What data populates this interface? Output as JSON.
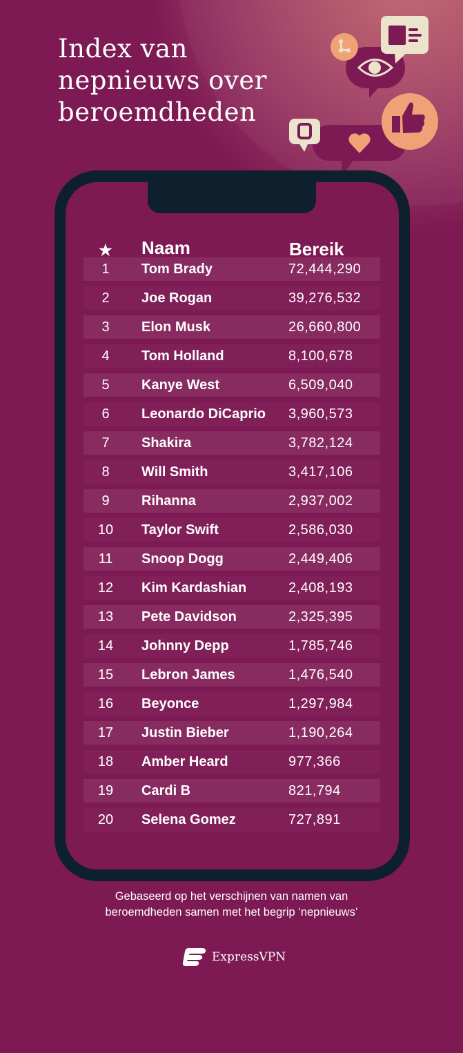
{
  "title": "Index van nepnieuws over beroemdheden",
  "title_lines": [
    "Index van",
    "nepnieuws over",
    "beroemdheden"
  ],
  "colors": {
    "background": "#7d1953",
    "phone": "#0e1f2e",
    "accent_peach": "#f0a276",
    "cream": "#ebe3cc"
  },
  "icons": [
    "share-icon",
    "newspaper-icon",
    "eye-icon",
    "thumbs-up-icon",
    "retweet-icon",
    "heart-icon",
    "star-icon"
  ],
  "chart_data": {
    "type": "table",
    "columns": [
      "★",
      "Naam",
      "Bereik"
    ],
    "rows": [
      {
        "rank": "1",
        "name": "Tom Brady",
        "reach": "72,444,290"
      },
      {
        "rank": "2",
        "name": "Joe Rogan",
        "reach": "39,276,532"
      },
      {
        "rank": "3",
        "name": "Elon Musk",
        "reach": "26,660,800"
      },
      {
        "rank": "4",
        "name": "Tom Holland",
        "reach": "8,100,678"
      },
      {
        "rank": "5",
        "name": "Kanye West",
        "reach": "6,509,040"
      },
      {
        "rank": "6",
        "name": "Leonardo DiCaprio",
        "reach": "3,960,573"
      },
      {
        "rank": "7",
        "name": "Shakira",
        "reach": "3,782,124"
      },
      {
        "rank": "8",
        "name": "Will Smith",
        "reach": "3,417,106"
      },
      {
        "rank": "9",
        "name": "Rihanna",
        "reach": "2,937,002"
      },
      {
        "rank": "10",
        "name": "Taylor Swift",
        "reach": "2,586,030"
      },
      {
        "rank": "11",
        "name": "Snoop Dogg",
        "reach": "2,449,406"
      },
      {
        "rank": "12",
        "name": "Kim Kardashian",
        "reach": "2,408,193"
      },
      {
        "rank": "13",
        "name": "Pete Davidson",
        "reach": "2,325,395"
      },
      {
        "rank": "14",
        "name": "Johnny Depp",
        "reach": "1,785,746"
      },
      {
        "rank": "15",
        "name": "Lebron James",
        "reach": "1,476,540"
      },
      {
        "rank": "16",
        "name": "Beyonce",
        "reach": "1,297,984"
      },
      {
        "rank": "17",
        "name": "Justin Bieber",
        "reach": "1,190,264"
      },
      {
        "rank": "18",
        "name": "Amber Heard",
        "reach": "977,366"
      },
      {
        "rank": "19",
        "name": "Cardi B",
        "reach": "821,794"
      },
      {
        "rank": "20",
        "name": "Selena Gomez",
        "reach": "727,891"
      }
    ]
  },
  "footnote_lines": [
    "Gebaseerd op het verschijnen van namen van",
    "beroemdheden samen met het begrip ‘nepnieuws’"
  ],
  "brand": "ExpressVPN"
}
